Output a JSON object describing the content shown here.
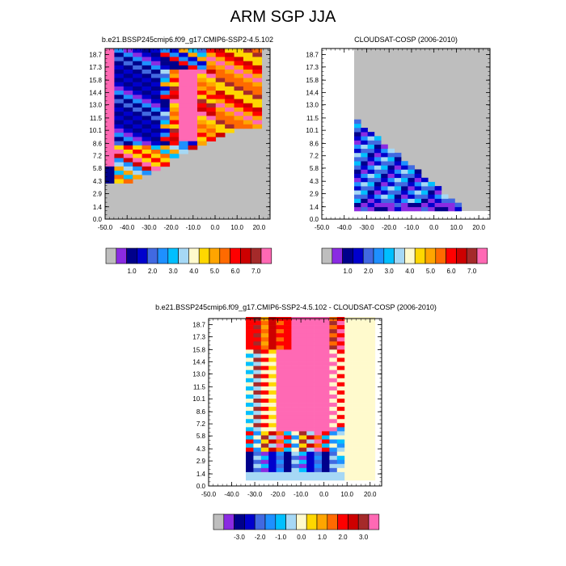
{
  "title": "ARM SGP JJA",
  "colors": {
    "bg_gray": "#bebebe",
    "palette": [
      "#bebebe",
      "#8a2be2",
      "#00008b",
      "#0000cd",
      "#4169e1",
      "#1e90ff",
      "#00bfff",
      "#a6d8f5",
      "#fffacd",
      "#ffd700",
      "#ffa500",
      "#ff6a00",
      "#ff0000",
      "#cd0000",
      "#a52a2a",
      "#ff69b4"
    ]
  },
  "chart_data": [
    {
      "type": "heatmap",
      "title": "b.e21.BSSP245cmip6.f09_g17.CMIP6-SSP2-4.5.102",
      "x_ticks": [
        "-50.0",
        "-40.0",
        "-30.0",
        "-20.0",
        "-10.0",
        "0.0",
        "10.0",
        "20.0"
      ],
      "y_ticks": [
        "0.0",
        "1.4",
        "2.9",
        "4.3",
        "5.8",
        "7.2",
        "8.6",
        "10.1",
        "11.5",
        "13.0",
        "14.4",
        "15.8",
        "17.3",
        "18.7"
      ],
      "xlim": [
        -50,
        25
      ],
      "ylim": [
        0,
        19.4
      ],
      "colorbar_labels": [
        "1.0",
        "2.0",
        "3.0",
        "4.0",
        "5.0",
        "6.0",
        "7.0"
      ],
      "missing_color": "#bebebe"
    },
    {
      "type": "heatmap",
      "title": "CLOUDSAT-COSP (2006-2010)",
      "x_ticks": [
        "-50.0",
        "-40.0",
        "-30.0",
        "-20.0",
        "-10.0",
        "0.0",
        "10.0",
        "20.0"
      ],
      "y_ticks": [
        "0.0",
        "1.4",
        "2.9",
        "4.3",
        "5.8",
        "7.2",
        "8.6",
        "10.1",
        "11.5",
        "13.0",
        "14.4",
        "15.8",
        "17.3",
        "18.7"
      ],
      "xlim": [
        -50,
        25
      ],
      "ylim": [
        0,
        19.4
      ],
      "colorbar_labels": [
        "1.0",
        "2.0",
        "3.0",
        "4.0",
        "5.0",
        "6.0",
        "7.0"
      ],
      "missing_color": "#bebebe"
    },
    {
      "type": "heatmap",
      "title": "b.e21.BSSP245cmip6.f09_g17.CMIP6-SSP2-4.5.102 - CLOUDSAT-COSP (2006-2010)",
      "x_ticks": [
        "-50.0",
        "-40.0",
        "-30.0",
        "-20.0",
        "-10.0",
        "0.0",
        "10.0",
        "20.0"
      ],
      "y_ticks": [
        "0.0",
        "1.4",
        "2.9",
        "4.3",
        "5.8",
        "7.2",
        "8.6",
        "10.1",
        "11.5",
        "13.0",
        "14.4",
        "15.8",
        "17.3",
        "18.7"
      ],
      "xlim": [
        -50,
        25
      ],
      "ylim": [
        0,
        19.4
      ],
      "colorbar_labels": [
        "-3.0",
        "-2.0",
        "-1.0",
        "0.0",
        "1.0",
        "2.0",
        "3.0"
      ],
      "missing_color": "#ffffff"
    }
  ]
}
